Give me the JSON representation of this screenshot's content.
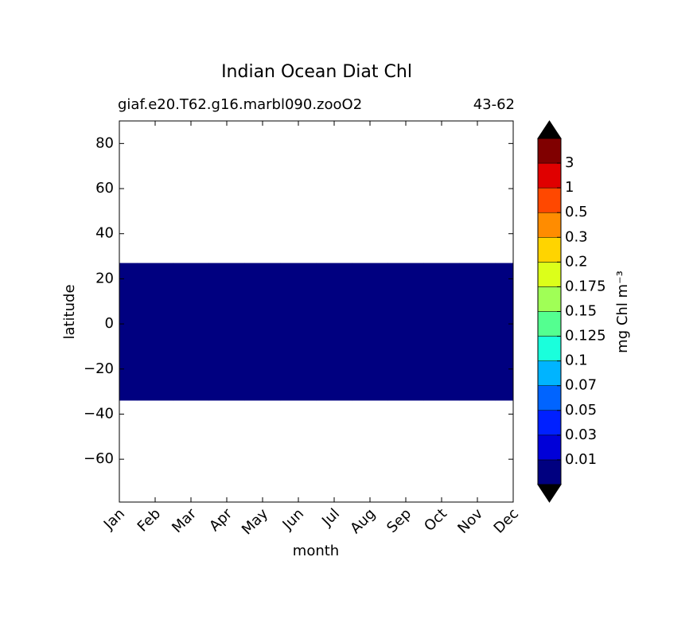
{
  "chart_data": {
    "type": "contourf",
    "title": "Indian Ocean Diat Chl",
    "subtitle_left": "giaf.e20.T62.g16.marbl090.zooO2",
    "subtitle_right": "43-62",
    "xlabel": "month",
    "ylabel": "latitude",
    "categories": [
      "Jan",
      "Feb",
      "Mar",
      "Apr",
      "May",
      "Jun",
      "Jul",
      "Aug",
      "Sep",
      "Oct",
      "Nov",
      "Dec"
    ],
    "y_edges": [
      -34,
      27
    ],
    "values": [
      [
        0.005,
        0.005,
        0.005,
        0.005,
        0.005,
        0.005,
        0.005,
        0.005,
        0.005,
        0.005,
        0.005,
        0.005
      ]
    ],
    "ylim": [
      -79,
      90
    ],
    "yticks": [
      {
        "value": -60,
        "label": "−60"
      },
      {
        "value": -40,
        "label": "−40"
      },
      {
        "value": -20,
        "label": "−20"
      },
      0,
      20,
      40,
      60,
      80
    ],
    "colorbar_label": "mg Chl m⁻³",
    "levels": [
      0.01,
      0.03,
      0.05,
      0.07,
      0.1,
      0.125,
      0.15,
      0.175,
      0.2,
      0.3,
      0.5,
      1,
      3
    ],
    "colors": [
      "#000080",
      "#0000d8",
      "#0020ff",
      "#0064ff",
      "#00b4ff",
      "#1affdc",
      "#54ff90",
      "#a0ff56",
      "#dcff1a",
      "#ffd400",
      "#ff8c00",
      "#ff4800",
      "#e00000",
      "#800000"
    ],
    "extend_color": "#000000"
  }
}
